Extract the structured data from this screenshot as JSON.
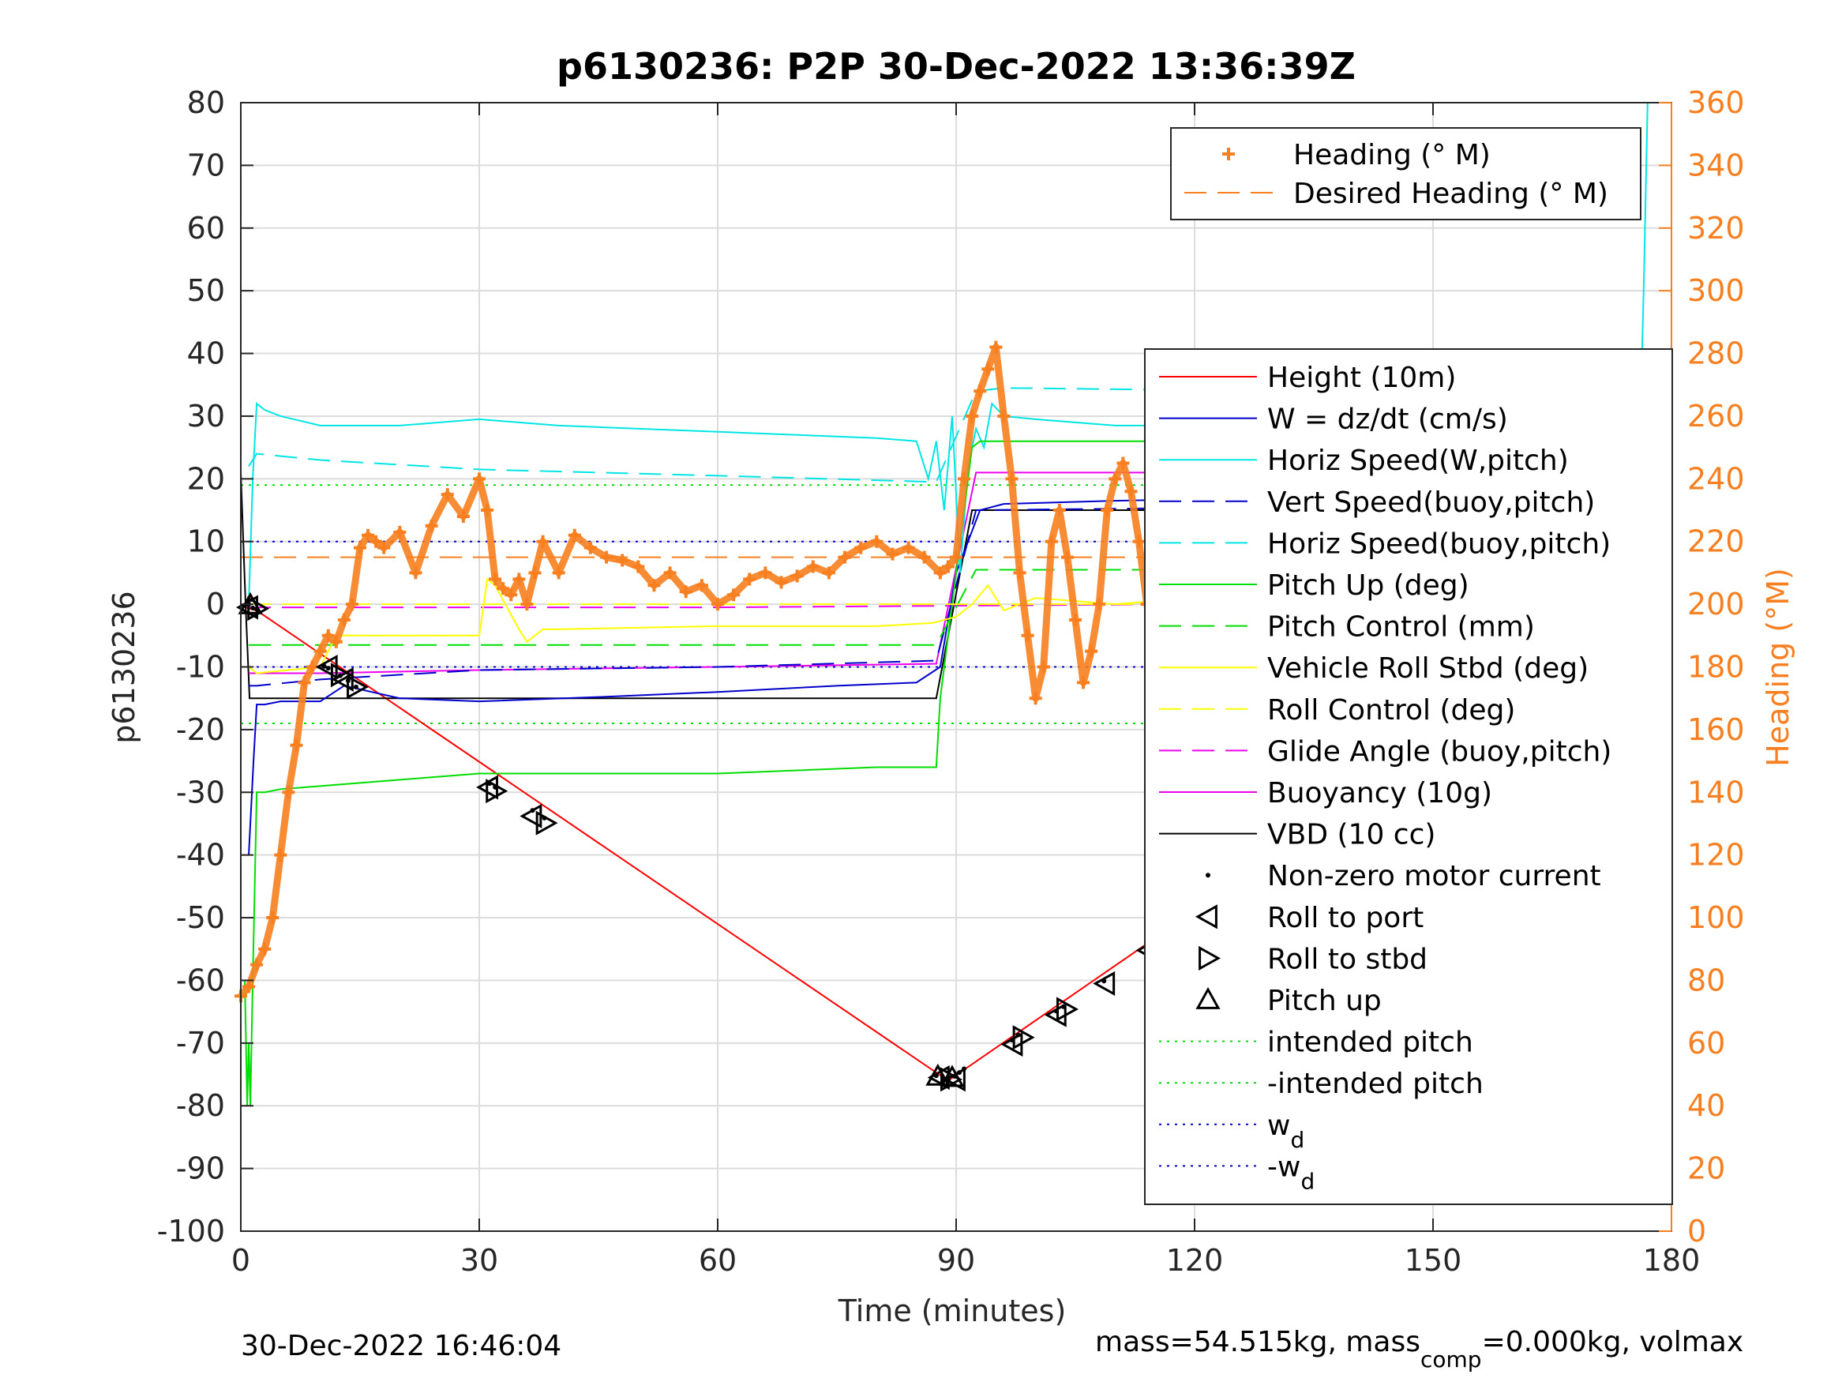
{
  "chart_data": {
    "type": "line",
    "title": "p6130236: P2P 30-Dec-2022 13:36:39Z",
    "xlabel": "Time (minutes)",
    "ylabel_left": "p6130236",
    "ylabel_right": "Heading (°M)",
    "xlim": [
      0,
      180
    ],
    "ylim_left": [
      -100,
      80
    ],
    "ylim_right": [
      0,
      360
    ],
    "xticks": [
      "0",
      "30",
      "60",
      "90",
      "120",
      "150",
      "180"
    ],
    "yticks_left": [
      "80",
      "70",
      "60",
      "50",
      "40",
      "30",
      "20",
      "10",
      "0",
      "-10",
      "-20",
      "-30",
      "-40",
      "-50",
      "-60",
      "-70",
      "-80",
      "-90",
      "-100"
    ],
    "yticks_right": [
      "360",
      "340",
      "320",
      "300",
      "280",
      "260",
      "240",
      "220",
      "200",
      "180",
      "160",
      "140",
      "120",
      "100",
      "80",
      "60",
      "40",
      "20",
      "0"
    ],
    "grid": true,
    "footer_left": "30-Dec-2022 16:46:04",
    "footer_right": {
      "part1": "mass=54.515kg, mass",
      "sub": "comp",
      "part2": "=0.000kg, volmax"
    },
    "legend_top": {
      "placement": "top-right",
      "entries": [
        {
          "label": "Heading (° M)",
          "color": "#f77f1f",
          "style": "plus"
        },
        {
          "label": "Desired Heading (° M)",
          "color": "#f77f1f",
          "style": "dashed"
        }
      ]
    },
    "legend_main": {
      "placement": "right",
      "entries": [
        {
          "label": "Height (10m)",
          "color": "#ff0000",
          "style": "solid"
        },
        {
          "label": "W = dz/dt (cm/s)",
          "color": "#0000cc",
          "style": "solid"
        },
        {
          "label": "Horiz Speed(W,pitch)",
          "color": "#00e5e5",
          "style": "solid"
        },
        {
          "label": "Vert Speed(buoy,pitch)",
          "color": "#0000cc",
          "style": "dashed"
        },
        {
          "label": "Horiz Speed(buoy,pitch)",
          "color": "#00e5e5",
          "style": "dashed"
        },
        {
          "label": "Pitch Up (deg)",
          "color": "#00dd00",
          "style": "solid"
        },
        {
          "label": "Pitch Control (mm)",
          "color": "#00dd00",
          "style": "dashed"
        },
        {
          "label": "Vehicle Roll Stbd (deg)",
          "color": "#ffff00",
          "style": "solid"
        },
        {
          "label": "Roll Control (deg)",
          "color": "#ffff00",
          "style": "dashed"
        },
        {
          "label": "Glide Angle (buoy,pitch)",
          "color": "#ee00ee",
          "style": "dashed"
        },
        {
          "label": "Buoyancy (10g)",
          "color": "#ee00ee",
          "style": "solid"
        },
        {
          "label": "VBD (10 cc)",
          "color": "#000000",
          "style": "solid"
        },
        {
          "label": "Non-zero motor current",
          "color": "#000000",
          "style": "dot"
        },
        {
          "label": "Roll to port",
          "color": "#000000",
          "style": "tri-left"
        },
        {
          "label": "Roll to stbd",
          "color": "#000000",
          "style": "tri-right"
        },
        {
          "label": "Pitch up",
          "color": "#000000",
          "style": "tri-up"
        },
        {
          "label": "intended pitch",
          "color": "#00dd00",
          "style": "dotted"
        },
        {
          "label": "-intended pitch",
          "color": "#00dd00",
          "style": "dotted"
        },
        {
          "label": "w",
          "sub": "d",
          "color": "#0000cc",
          "style": "dotted"
        },
        {
          "label": "-w",
          "sub": "d",
          "color": "#0000cc",
          "style": "dotted"
        }
      ]
    },
    "reference_lines": [
      {
        "name": "intended pitch",
        "y": 19,
        "color": "#00dd00",
        "style": "dotted"
      },
      {
        "name": "-intended pitch",
        "y": -19,
        "color": "#00dd00",
        "style": "dotted"
      },
      {
        "name": "w_d",
        "y": 10,
        "color": "#0000cc",
        "style": "dotted"
      },
      {
        "name": "-w_d",
        "y": -10,
        "color": "#0000cc",
        "style": "dotted"
      },
      {
        "name": "Desired Heading (° M)",
        "y_right": 215,
        "color": "#f77f1f",
        "style": "dashed"
      }
    ],
    "series": [
      {
        "name": "Height (10m)",
        "axis": "left",
        "color": "#ff0000",
        "style": "solid",
        "x": [
          0.5,
          2,
          89,
          176
        ],
        "y": [
          -0.5,
          -1,
          -76,
          0
        ]
      },
      {
        "name": "VBD (10 cc)",
        "axis": "left",
        "color": "#000000",
        "style": "solid",
        "x": [
          0,
          0.6,
          1.1,
          87.5,
          92,
          176
        ],
        "y": [
          21,
          0,
          -15,
          -15,
          15,
          15
        ]
      },
      {
        "name": "Buoyancy (10g)",
        "axis": "left",
        "color": "#ee00ee",
        "style": "solid",
        "x": [
          1,
          10,
          30,
          60,
          87.5,
          92.5,
          130,
          176
        ],
        "y": [
          -11,
          -11,
          -10.5,
          -10,
          -9.5,
          21,
          21,
          19
        ]
      },
      {
        "name": "Glide Angle (buoy,pitch)",
        "axis": "left",
        "color": "#ee00ee",
        "style": "dashed",
        "x": [
          1,
          60,
          176
        ],
        "y": [
          -0.5,
          -0.5,
          0.5
        ]
      },
      {
        "name": "W = dz/dt (cm/s)",
        "axis": "left",
        "color": "#0000cc",
        "style": "solid",
        "x": [
          1,
          1.6,
          2,
          3,
          5,
          10,
          13,
          20,
          30,
          45,
          60,
          75,
          85,
          88,
          90,
          93,
          96,
          110,
          130,
          150,
          170,
          176
        ],
        "y": [
          -40,
          -25,
          -16,
          -16,
          -15.5,
          -15.5,
          -13,
          -15,
          -15.5,
          -14.8,
          -14,
          -13,
          -12.5,
          -10,
          5,
          15,
          16,
          16.5,
          17,
          16,
          15.5,
          15
        ]
      },
      {
        "name": "Vert Speed(buoy,pitch)",
        "axis": "left",
        "color": "#0000cc",
        "style": "dashed",
        "x": [
          1,
          2,
          10,
          30,
          60,
          87.5,
          92.5,
          130,
          176
        ],
        "y": [
          -13,
          -13,
          -12,
          -10.5,
          -10,
          -9,
          15,
          15.5,
          14
        ]
      },
      {
        "name": "Horiz Speed(W,pitch)",
        "axis": "left",
        "color": "#00e5e5",
        "style": "solid",
        "x": [
          1,
          1.5,
          2,
          3,
          5,
          10,
          20,
          30,
          40,
          50,
          60,
          70,
          80,
          85,
          86.5,
          87.5,
          88.5,
          89.5,
          90.5,
          91.5,
          92.5,
          93.5,
          94.5,
          96,
          100,
          110,
          120,
          130,
          140,
          150,
          160,
          170,
          176,
          176.5,
          177
        ],
        "y": [
          0,
          20,
          32,
          31,
          30,
          28.5,
          28.5,
          29.5,
          28.5,
          28,
          27.5,
          27,
          26.5,
          26,
          20,
          26,
          15,
          30,
          5,
          22,
          28,
          25,
          32,
          30,
          29.5,
          28.5,
          28.5,
          28,
          27,
          27,
          27,
          26,
          25,
          50,
          80
        ]
      },
      {
        "name": "Horiz Speed(buoy,pitch)",
        "axis": "left",
        "color": "#00e5e5",
        "style": "dashed",
        "x": [
          1,
          2,
          10,
          30,
          60,
          87.5,
          92.5,
          96,
          130,
          176
        ],
        "y": [
          22,
          24,
          23,
          21.5,
          20.5,
          19.5,
          34,
          34.5,
          34,
          31
        ]
      },
      {
        "name": "Pitch Up (deg)",
        "axis": "left",
        "color": "#00dd00",
        "style": "solid",
        "x": [
          0.5,
          0.8,
          1,
          1.2,
          1.5,
          2,
          3,
          5,
          10,
          20,
          30,
          40,
          50,
          60,
          70,
          80,
          85,
          87.5,
          88,
          92,
          93,
          100,
          110,
          120,
          130,
          140,
          150,
          160,
          170,
          176
        ],
        "y": [
          -60,
          -80,
          -70,
          -80,
          -60,
          -30,
          -30,
          -29.5,
          -29,
          -28,
          -27,
          -27,
          -27,
          -27,
          -26.5,
          -26,
          -26,
          -26,
          -15,
          25,
          26,
          26,
          26,
          26,
          26,
          26,
          26,
          26,
          25.5,
          25
        ]
      },
      {
        "name": "Pitch Control (mm)",
        "axis": "left",
        "color": "#00dd00",
        "style": "dashed",
        "x": [
          1,
          87.5,
          92.5,
          176
        ],
        "y": [
          -6.5,
          -6.5,
          5.5,
          5.5
        ]
      },
      {
        "name": "Vehicle Roll Stbd (deg)",
        "axis": "left",
        "color": "#ffff00",
        "style": "solid",
        "x": [
          1,
          2,
          10,
          12,
          30,
          31,
          32,
          35,
          36,
          38,
          40,
          60,
          80,
          87,
          90,
          92,
          94,
          96,
          100,
          110,
          120,
          130,
          140,
          150,
          160,
          170,
          176
        ],
        "y": [
          -10,
          -11,
          -10,
          -5,
          -5,
          4,
          3,
          -4,
          -6,
          -4,
          -4,
          -3.5,
          -3.5,
          -3,
          -2,
          0,
          3,
          -1,
          1,
          0,
          1,
          0,
          2,
          0,
          1,
          0,
          2
        ]
      },
      {
        "name": "Roll Control (deg)",
        "axis": "left",
        "color": "#ffff00",
        "style": "dashed",
        "x": [
          1,
          176
        ],
        "y": [
          0,
          0
        ]
      },
      {
        "name": "Heading (° M)",
        "axis": "right",
        "color": "#f77f1f",
        "style": "plus",
        "x": [
          0,
          1,
          2,
          3,
          4,
          5,
          6,
          7,
          8,
          9,
          10,
          11,
          12,
          13,
          14,
          15,
          16,
          17,
          18,
          20,
          22,
          24,
          26,
          28,
          30,
          31,
          32,
          33,
          34,
          35,
          36,
          37,
          38,
          40,
          42,
          44,
          46,
          48,
          50,
          52,
          54,
          56,
          58,
          60,
          62,
          64,
          66,
          68,
          70,
          72,
          74,
          76,
          78,
          80,
          82,
          84,
          86,
          88,
          89,
          90,
          91,
          92,
          93,
          94,
          95,
          96,
          97,
          98,
          99,
          100,
          101,
          102,
          103,
          104,
          105,
          106,
          107,
          108,
          109,
          110,
          111,
          112,
          113,
          114,
          115,
          116,
          117,
          118,
          119,
          120,
          121,
          122,
          123,
          124,
          125,
          126,
          127,
          128,
          129,
          130,
          131,
          132,
          133,
          134,
          135,
          136,
          137,
          138,
          139,
          140,
          141,
          142,
          143,
          144,
          145,
          146,
          147,
          148,
          149,
          150,
          151,
          152,
          153,
          154,
          155,
          156,
          157,
          158,
          159,
          160,
          161,
          162,
          163,
          164,
          165,
          166,
          167,
          168,
          169,
          170,
          171,
          172,
          173,
          174,
          175,
          176
        ],
        "y": [
          75,
          78,
          85,
          90,
          100,
          120,
          140,
          155,
          175,
          180,
          185,
          190,
          188,
          195,
          200,
          218,
          222,
          220,
          218,
          223,
          210,
          225,
          235,
          228,
          240,
          230,
          208,
          205,
          203,
          208,
          200,
          210,
          220,
          210,
          222,
          218,
          215,
          214,
          212,
          206,
          210,
          204,
          206,
          200,
          203,
          208,
          210,
          207,
          209,
          212,
          210,
          215,
          218,
          220,
          216,
          218,
          215,
          210,
          212,
          215,
          240,
          260,
          268,
          275,
          282,
          260,
          240,
          210,
          190,
          170,
          180,
          220,
          230,
          215,
          195,
          175,
          185,
          200,
          230,
          240,
          245,
          236,
          220,
          200,
          192,
          185,
          172,
          168,
          185,
          230,
          240,
          235,
          215,
          190,
          180,
          172,
          210,
          232,
          246,
          236,
          216,
          202,
          192,
          182,
          178,
          196,
          222,
          242,
          245,
          236,
          213,
          196,
          178,
          190,
          218,
          232,
          236,
          224,
          200,
          185,
          160,
          178,
          206,
          232,
          234,
          216,
          195,
          172,
          175,
          205,
          218,
          210,
          192,
          178,
          186,
          204,
          220,
          214,
          198,
          190,
          185,
          196,
          210,
          220,
          200,
          240
        ]
      },
      {
        "name": "Non-zero motor current",
        "axis": "left",
        "color": "#000000",
        "style": "dot",
        "x": [
          0.5,
          1,
          1.5,
          2,
          10.5,
          11,
          12.5,
          13.5,
          14.5,
          31.3,
          32,
          36.7,
          38.2,
          87.5,
          88.3,
          89,
          89.8,
          90.4,
          91,
          97,
          97.8,
          102.6,
          103.5,
          108.6,
          114,
          114.9,
          119.8,
          120.6,
          125,
          126,
          130.5,
          131.2,
          134.8,
          136,
          141,
          142.5,
          148.3,
          149.5,
          159.6,
          160.5,
          162.6,
          164,
          167,
          168.4,
          171,
          172.6,
          174,
          174.8,
          176.2
        ],
        "y": [
          -0.2,
          0,
          -0.6,
          -0.8,
          -9.9,
          -10.2,
          -11.4,
          -12.2,
          -13.2,
          -28.6,
          -29.2,
          -32.9,
          -34.1,
          -75.2,
          -75.8,
          -75.9,
          -75.3,
          -74.7,
          -74.1,
          -69.5,
          -68.7,
          -64.9,
          -64.2,
          -60.1,
          -55.7,
          -55,
          -51,
          -50.4,
          -46.8,
          -46,
          -42.4,
          -41.8,
          -38.9,
          -37.9,
          -33.9,
          -32.7,
          -28,
          -27,
          -18.8,
          -18.1,
          -16.4,
          -15.3,
          -12.8,
          -11.7,
          -9.6,
          -8.3,
          -7.2,
          -6.6,
          -5.4
        ]
      },
      {
        "name": "Roll to port",
        "axis": "left",
        "color": "#000000",
        "style": "tri-left",
        "x": [
          1,
          11,
          13,
          31.2,
          36.7,
          88,
          90,
          97.2,
          102.7,
          108.8,
          114.2,
          119.8,
          125.2,
          130.6,
          136.2,
          141.3,
          148.6,
          159.8,
          162.8,
          167.3,
          171.3,
          174.1
        ],
        "y": [
          -0.5,
          -10,
          -12,
          -29.2,
          -33.8,
          -75.5,
          -75.8,
          -70.2,
          -65.5,
          -60.5,
          -55.2,
          -50,
          -45,
          -40,
          -35.2,
          -31,
          -24.5,
          -13,
          -10.5,
          -7,
          -4,
          -1.5
        ]
      },
      {
        "name": "Roll to stbd",
        "axis": "left",
        "color": "#000000",
        "style": "tri-right",
        "x": [
          2,
          12.5,
          14.5,
          32,
          38.3,
          89.2,
          98.3,
          103.8,
          115.2,
          121,
          126.3,
          131.5,
          137.2,
          142.5,
          149.6,
          161,
          164.5,
          168.5,
          172.5,
          175,
          176.3
        ],
        "y": [
          -0.7,
          -11.3,
          -13.2,
          -29.8,
          -34.9,
          -75.8,
          -69.1,
          -64.6,
          -54.1,
          -49,
          -44.2,
          -39.4,
          -33.9,
          -29,
          -22.5,
          -12.1,
          -8.9,
          -6,
          -3.4,
          -1.9,
          -0.4
        ]
      },
      {
        "name": "Pitch up",
        "axis": "left",
        "color": "#000000",
        "style": "tri-up",
        "x": [
          1.2,
          87.7,
          89.5
        ],
        "y": [
          -0.1,
          -75.3,
          -75.5
        ]
      }
    ]
  }
}
